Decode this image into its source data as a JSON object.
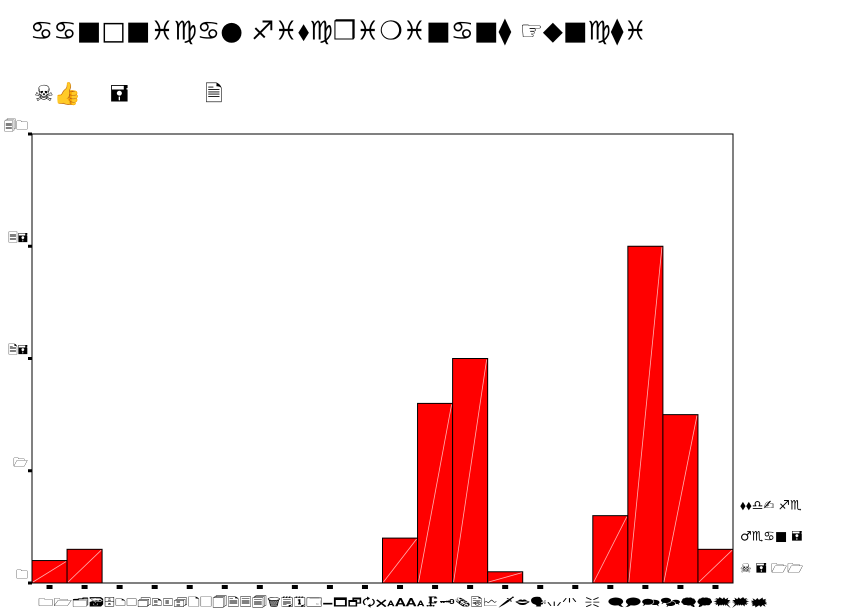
{
  "chart_data": {
    "type": "histogram",
    "title": "♋♋■□■♓♍♋●  ♐♓⬧♍❒♓❍♓■♋■⧫  ☞◆■♍⧫♓",
    "annotations": [
      "☠👍",
      "🖬",
      "🗎"
    ],
    "legend_lines": [
      "⬧⬧♎✍  ♐♏",
      "♂♏♋■  🖬",
      "☠  🖬  🗁🗁"
    ],
    "xlabel": "🗀🗁🗂🗃🗄🗅🗆🗇🗈🗉🗊🗋🗌🗍🗎🗏🗐🗑🗒🗓🗔🗕🗖🗗🗘🗙🗚🗛🗜🗝🗞🗟🗠🗡🗢🗣🗤🗥🗦🗧🗨🗩🗪🗫🗬🗭🗮🗯🗰",
    "bins": [
      0,
      1,
      2,
      3,
      4,
      5,
      6,
      7,
      8,
      9,
      10,
      11,
      12,
      13,
      14,
      15,
      16,
      17,
      18,
      19,
      20
    ],
    "values": [
      2,
      3,
      0,
      0,
      0,
      0,
      0,
      0,
      0,
      0,
      4,
      16,
      20,
      1,
      0,
      0,
      6,
      30,
      15,
      3
    ],
    "color": "#ff0000",
    "ylim": [
      0,
      40
    ],
    "yticks": [
      {
        "value": 0,
        "label": "🗀"
      },
      {
        "value": 10,
        "label": "🗁"
      },
      {
        "value": 20,
        "label": "🗎🖬"
      },
      {
        "value": 30,
        "label": "🗏🖬"
      },
      {
        "value": 40,
        "label": "🗐🗀"
      }
    ]
  }
}
